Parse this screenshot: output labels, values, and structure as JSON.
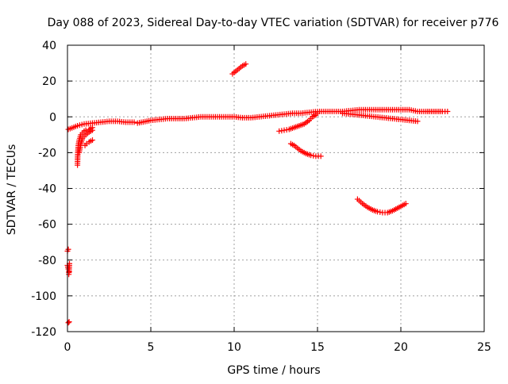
{
  "chart_data": {
    "type": "scatter",
    "title": "Day 088 of 2023, Sidereal Day-to-day VTEC variation (SDTVAR) for receiver p776",
    "xlabel": "GPS time / hours",
    "ylabel": "SDTVAR / TECUs",
    "xlim": [
      0,
      25
    ],
    "ylim": [
      -120,
      40
    ],
    "xticks": [
      0,
      5,
      10,
      15,
      20,
      25
    ],
    "yticks": [
      -120,
      -100,
      -80,
      -60,
      -40,
      -20,
      0,
      20,
      40
    ],
    "grid": true,
    "marker": "+",
    "series": [
      {
        "name": "SDTVAR",
        "color": "#ff0000",
        "segments": [
          {
            "name": "main-arc",
            "points": [
              [
                0.05,
                -7
              ],
              [
                0.6,
                -5
              ],
              [
                1.0,
                -4
              ],
              [
                1.5,
                -3.5
              ],
              [
                2.0,
                -3
              ],
              [
                2.5,
                -2.5
              ],
              [
                3.0,
                -2.5
              ],
              [
                3.5,
                -3
              ],
              [
                4.0,
                -3
              ],
              [
                4.2,
                -3.5
              ],
              [
                5.0,
                -2
              ],
              [
                5.5,
                -1.5
              ],
              [
                6.0,
                -1
              ],
              [
                6.5,
                -1
              ],
              [
                7.0,
                -1
              ],
              [
                7.5,
                -0.5
              ],
              [
                8.0,
                0
              ],
              [
                8.5,
                0
              ],
              [
                9.0,
                0
              ],
              [
                9.5,
                0
              ],
              [
                10.0,
                0
              ],
              [
                10.5,
                -0.5
              ],
              [
                11.0,
                -0.5
              ],
              [
                11.5,
                0
              ],
              [
                12.0,
                0.5
              ],
              [
                12.5,
                1
              ],
              [
                13.0,
                1.5
              ],
              [
                13.5,
                2
              ],
              [
                14.0,
                2
              ],
              [
                14.5,
                2.5
              ],
              [
                15.0,
                3
              ],
              [
                15.5,
                3
              ],
              [
                16.0,
                3
              ],
              [
                16.5,
                3
              ],
              [
                17.0,
                3.5
              ],
              [
                17.5,
                4
              ],
              [
                18.0,
                4
              ],
              [
                18.5,
                4
              ],
              [
                19.0,
                4
              ],
              [
                19.5,
                4
              ],
              [
                20.0,
                4
              ],
              [
                20.5,
                4
              ],
              [
                21.0,
                3
              ],
              [
                21.5,
                3
              ],
              [
                22.5,
                3
              ],
              [
                22.8,
                3
              ]
            ]
          },
          {
            "name": "secondary-arc",
            "points": [
              [
                16.5,
                2
              ],
              [
                17.0,
                1.5
              ],
              [
                17.5,
                1
              ],
              [
                18.0,
                0.5
              ],
              [
                18.5,
                0
              ],
              [
                19.0,
                -0.5
              ],
              [
                19.5,
                -1
              ],
              [
                20.0,
                -1.5
              ],
              [
                20.5,
                -2
              ],
              [
                21.0,
                -2.5
              ]
            ]
          },
          {
            "name": "early-curve-low",
            "points": [
              [
                0.6,
                -27
              ],
              [
                0.62,
                -20
              ],
              [
                0.65,
                -16
              ],
              [
                0.7,
                -13
              ],
              [
                0.8,
                -10
              ],
              [
                0.9,
                -9
              ],
              [
                1.0,
                -8
              ],
              [
                1.1,
                -7.5
              ],
              [
                1.3,
                -7
              ],
              [
                1.5,
                -6
              ]
            ]
          },
          {
            "name": "early-curve-mid",
            "points": [
              [
                0.7,
                -20
              ],
              [
                0.8,
                -15
              ],
              [
                0.9,
                -12
              ],
              [
                1.1,
                -10
              ],
              [
                1.3,
                -8.5
              ],
              [
                1.5,
                -7.5
              ]
            ]
          },
          {
            "name": "early-curve-side",
            "points": [
              [
                1.05,
                -16
              ],
              [
                1.15,
                -15
              ],
              [
                1.3,
                -14
              ],
              [
                1.5,
                -13
              ]
            ]
          },
          {
            "name": "rise-14h",
            "points": [
              [
                12.7,
                -8
              ],
              [
                13.0,
                -7.5
              ],
              [
                13.3,
                -7
              ],
              [
                13.6,
                -6
              ],
              [
                13.9,
                -5
              ],
              [
                14.2,
                -4
              ],
              [
                14.5,
                -2
              ],
              [
                14.7,
                0
              ],
              [
                14.9,
                1
              ],
              [
                15.0,
                2
              ]
            ]
          },
          {
            "name": "fall-14h",
            "points": [
              [
                13.4,
                -15
              ],
              [
                13.6,
                -16
              ],
              [
                13.8,
                -17.5
              ],
              [
                14.0,
                -19
              ],
              [
                14.3,
                -20.5
              ],
              [
                14.6,
                -21.5
              ],
              [
                14.9,
                -22
              ],
              [
                15.2,
                -22
              ]
            ]
          },
          {
            "name": "spike-10h",
            "points": [
              [
                9.9,
                24
              ],
              [
                10.1,
                25.5
              ],
              [
                10.3,
                27
              ],
              [
                10.5,
                28.5
              ],
              [
                10.7,
                29.5
              ]
            ]
          },
          {
            "name": "dip-19h",
            "points": [
              [
                17.4,
                -46
              ],
              [
                17.7,
                -48.5
              ],
              [
                18.0,
                -50.5
              ],
              [
                18.3,
                -52
              ],
              [
                18.6,
                -53
              ],
              [
                18.9,
                -53.5
              ],
              [
                19.2,
                -53.5
              ],
              [
                19.5,
                -52.5
              ],
              [
                19.8,
                -51
              ],
              [
                20.1,
                -49.5
              ],
              [
                20.3,
                -48.5
              ]
            ]
          },
          {
            "name": "outlier-75",
            "points": [
              [
                0.0,
                -75
              ],
              [
                0.05,
                -74
              ]
            ]
          },
          {
            "name": "outlier-85",
            "points": [
              [
                0.0,
                -83
              ],
              [
                0.05,
                -85
              ],
              [
                0.1,
                -86.5
              ],
              [
                0.08,
                -88
              ],
              [
                0.12,
                -82
              ]
            ]
          },
          {
            "name": "outlier-115",
            "points": [
              [
                0.05,
                -115
              ],
              [
                0.1,
                -114.5
              ]
            ]
          }
        ]
      }
    ]
  }
}
